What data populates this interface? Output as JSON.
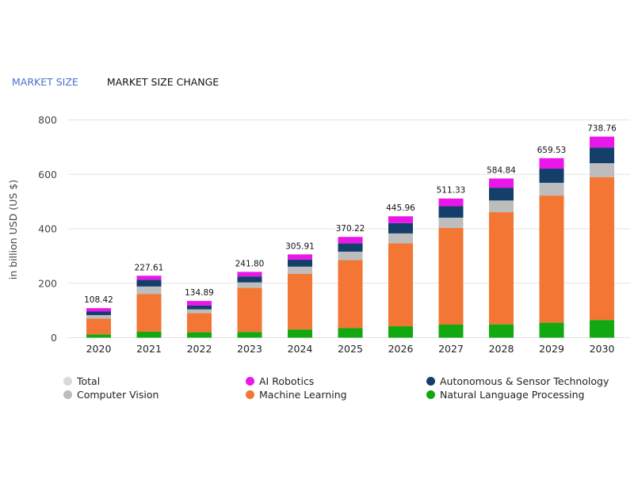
{
  "tabs": {
    "market_size": "MARKET SIZE",
    "market_size_change": "MARKET SIZE CHANGE"
  },
  "chart_data": {
    "type": "bar",
    "stacked": true,
    "title": "",
    "xlabel": "",
    "ylabel": "in billion USD (US $)",
    "ylim": [
      0,
      800
    ],
    "yticks": [
      "0",
      "200",
      "400",
      "600",
      "800"
    ],
    "categories": [
      "2020",
      "2021",
      "2022",
      "2023",
      "2024",
      "2025",
      "2026",
      "2027",
      "2028",
      "2029",
      "2030"
    ],
    "totals": [
      108.42,
      227.61,
      134.89,
      241.8,
      305.91,
      370.22,
      445.96,
      511.33,
      584.84,
      659.53,
      738.76
    ],
    "total_labels": [
      "108.42",
      "227.61",
      "134.89",
      "241.80",
      "305.91",
      "370.22",
      "445.96",
      "511.33",
      "584.84",
      "659.53",
      "738.76"
    ],
    "series": [
      {
        "name": "Natural Language Processing",
        "color": "#11a811",
        "values": [
          12,
          22,
          20,
          21,
          30,
          35,
          42,
          48,
          49,
          55,
          65
        ]
      },
      {
        "name": "Machine Learning",
        "color": "#f47634",
        "values": [
          58,
          138,
          70,
          162,
          205,
          250,
          305,
          355,
          412,
          467,
          525
        ]
      },
      {
        "name": "Computer Vision",
        "color": "#bdbdbd",
        "values": [
          13,
          28,
          14,
          20,
          26,
          31,
          36,
          38,
          43,
          47,
          51
        ]
      },
      {
        "name": "Autonomous & Sensor Technology",
        "color": "#143f6b",
        "values": [
          13,
          25,
          14,
          22,
          26,
          31,
          38,
          42,
          47,
          52,
          58
        ]
      },
      {
        "name": "AI Robotics",
        "color": "#ea16ea",
        "values": [
          12.42,
          14.61,
          16.89,
          16.8,
          18.91,
          23.22,
          24.96,
          28.33,
          33.84,
          38.53,
          39.76
        ]
      }
    ]
  },
  "legend": [
    {
      "label": "Total",
      "color": "#d9d9d9"
    },
    {
      "label": "Computer Vision",
      "color": "#bdbdbd"
    },
    {
      "label": "AI Robotics",
      "color": "#ea16ea"
    },
    {
      "label": "Machine Learning",
      "color": "#f47634"
    },
    {
      "label": "Autonomous & Sensor Technology",
      "color": "#143f6b"
    },
    {
      "label": "Natural Language Processing",
      "color": "#11a811"
    }
  ]
}
